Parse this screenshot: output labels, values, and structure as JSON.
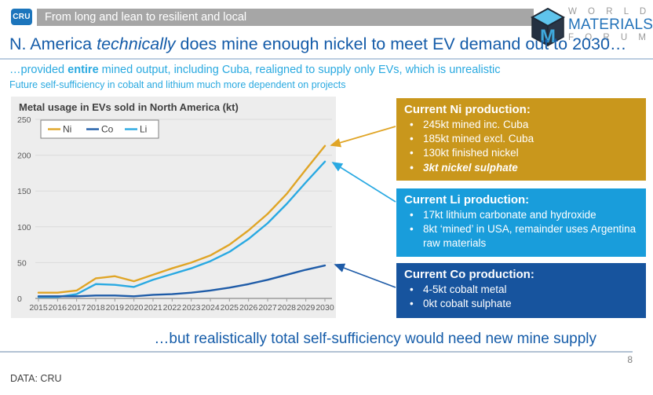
{
  "header": {
    "cru_logo": "CRU",
    "banner": "From long and lean to resilient and local",
    "wmf": {
      "word1": "W O R L D",
      "word2": "MATERIALS",
      "word3": "F O R U M",
      "cube_letter": "M"
    }
  },
  "title": {
    "pre": "N. America ",
    "italic": "technically",
    "post": " does mine enough nickel to meet EV demand out to 2030…"
  },
  "subtitle": {
    "pre": "…provided ",
    "bold": "entire",
    "post": " mined output, including Cuba, realigned to supply only EVs, which is unrealistic"
  },
  "subnote": "Future self-sufficiency in cobalt and lithium much more dependent on projects",
  "chart_data": {
    "type": "line",
    "title": "Metal usage in EVs sold in North America (kt)",
    "x": [
      2015,
      2016,
      2017,
      2018,
      2019,
      2020,
      2021,
      2022,
      2023,
      2024,
      2025,
      2026,
      2027,
      2028,
      2029,
      2030
    ],
    "series": [
      {
        "name": "Ni",
        "color": "#E0A526",
        "values": [
          8,
          8,
          11,
          28,
          31,
          24,
          33,
          42,
          50,
          60,
          75,
          95,
          118,
          146,
          180,
          213
        ]
      },
      {
        "name": "Co",
        "color": "#1F5CA8",
        "values": [
          3,
          3,
          3,
          4,
          4,
          3,
          5,
          6,
          8,
          11,
          15,
          20,
          26,
          33,
          40,
          46
        ]
      },
      {
        "name": "Li",
        "color": "#29A9E2",
        "values": [
          2,
          2,
          6,
          20,
          19,
          16,
          26,
          34,
          42,
          52,
          65,
          83,
          105,
          132,
          162,
          191
        ]
      }
    ],
    "ylim": [
      0,
      250
    ],
    "ytick_step": 50,
    "grid": true,
    "legend_position": "top-left",
    "xlabel": "",
    "ylabel": ""
  },
  "callouts": [
    {
      "id": "ni",
      "color": "#C9971C",
      "title": "Current Ni production:",
      "bullets": [
        {
          "text": "245kt mined inc. Cuba"
        },
        {
          "text": "185kt mined excl. Cuba"
        },
        {
          "text": "130kt finished nickel"
        },
        {
          "text": "3kt nickel sulphate",
          "emphasis": true
        }
      ]
    },
    {
      "id": "li",
      "color": "#199DDB",
      "title": "Current Li production:",
      "bullets": [
        {
          "text": "17kt lithium carbonate and hydroxide"
        },
        {
          "text": "8kt ‘mined’ in USA, remainder uses Argentina raw materials"
        }
      ]
    },
    {
      "id": "co",
      "color": "#17549E",
      "title": "Current Co production:",
      "bullets": [
        {
          "text": "4-5kt cobalt metal"
        },
        {
          "text": "0kt cobalt sulphate"
        }
      ]
    }
  ],
  "statement": "…but realistically total self-sufficiency would need new mine supply",
  "page_number": "8",
  "data_source": "DATA: CRU"
}
